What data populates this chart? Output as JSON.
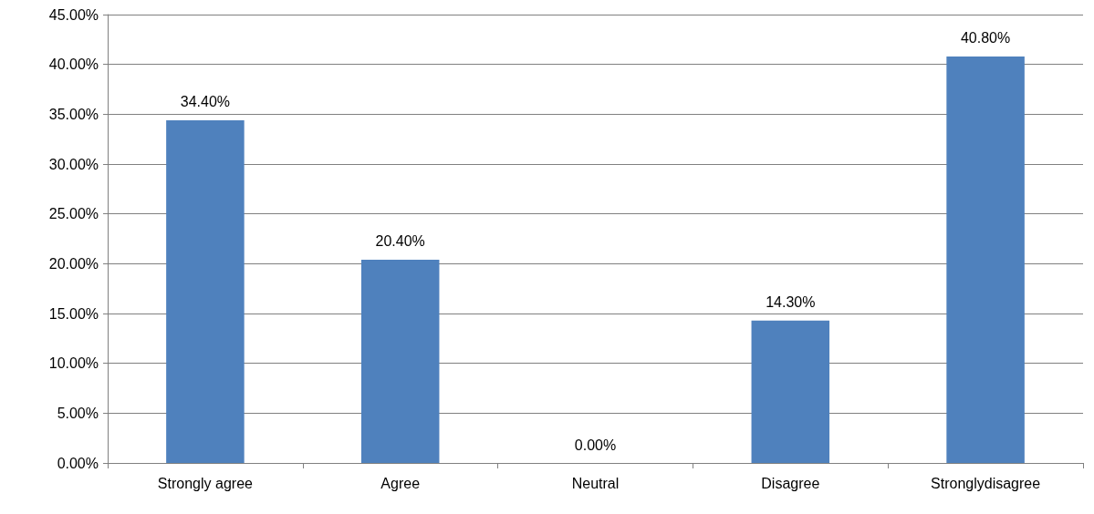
{
  "chart_data": {
    "type": "bar",
    "categories": [
      "Strongly agree",
      "Agree",
      "Neutral",
      "Disagree",
      "Stronglydisagree"
    ],
    "values": [
      34.4,
      20.4,
      0,
      14.3,
      40.8
    ],
    "value_labels": [
      "34.40%",
      "20.40%",
      "0.00%",
      "14.30%",
      "40.80%"
    ],
    "color": "#4f81bd",
    "ylim": [
      0,
      45
    ],
    "yticks": [
      {
        "value": 0,
        "label": "0.00%"
      },
      {
        "value": 5,
        "label": "5.00%"
      },
      {
        "value": 10,
        "label": "10.00%"
      },
      {
        "value": 15,
        "label": "15.00%"
      },
      {
        "value": 20,
        "label": "20.00%"
      },
      {
        "value": 25,
        "label": "25.00%"
      },
      {
        "value": 30,
        "label": "30.00%"
      },
      {
        "value": 35,
        "label": "35.00%"
      },
      {
        "value": 40,
        "label": "40.00%"
      },
      {
        "value": 45,
        "label": "45.00%"
      }
    ],
    "grid": "y"
  }
}
